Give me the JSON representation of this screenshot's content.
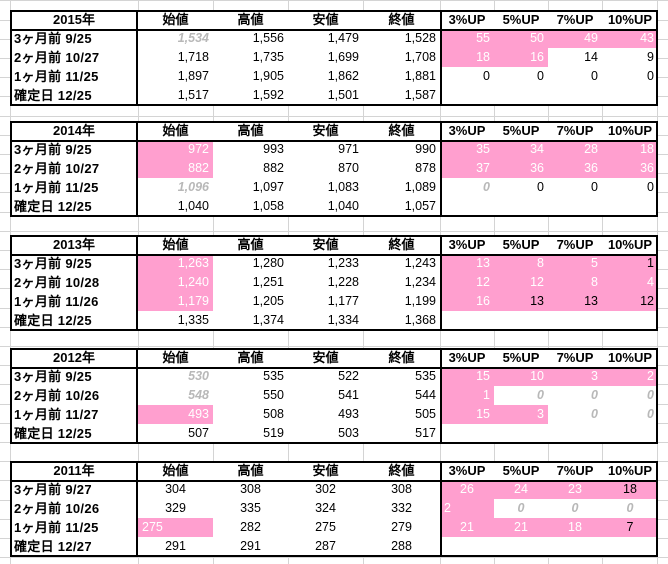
{
  "headers": {
    "open": "始値",
    "high": "高値",
    "low": "安値",
    "close": "終値",
    "up3": "3%UP",
    "up5": "5%UP",
    "up7": "7%UP",
    "up10": "10%UP"
  },
  "blocks": [
    {
      "year": "2015年",
      "rows": [
        {
          "label": "3ヶ月前  9/25",
          "open": "1,534",
          "high": "1,556",
          "low": "1,479",
          "close": "1,528",
          "up3": "55",
          "up5": "50",
          "up7": "49",
          "up10": "43"
        },
        {
          "label": "2ヶ月前  10/27",
          "open": "1,718",
          "high": "1,735",
          "low": "1,699",
          "close": "1,708",
          "up3": "18",
          "up5": "16",
          "up7": "14",
          "up10": "9"
        },
        {
          "label": "1ヶ月前  11/25",
          "open": "1,897",
          "high": "1,905",
          "low": "1,862",
          "close": "1,881",
          "up3": "0",
          "up5": "0",
          "up7": "0",
          "up10": "0"
        },
        {
          "label": "確定日  12/25",
          "open": "1,517",
          "high": "1,592",
          "low": "1,501",
          "close": "1,587",
          "up3": "",
          "up5": "",
          "up7": "",
          "up10": ""
        }
      ]
    },
    {
      "year": "2014年",
      "rows": [
        {
          "label": "3ヶ月前  9/25",
          "open": "972",
          "high": "993",
          "low": "971",
          "close": "990",
          "up3": "35",
          "up5": "34",
          "up7": "28",
          "up10": "18"
        },
        {
          "label": "2ヶ月前  10/27",
          "open": "882",
          "high": "882",
          "low": "870",
          "close": "878",
          "up3": "37",
          "up5": "36",
          "up7": "36",
          "up10": "36"
        },
        {
          "label": "1ヶ月前  11/25",
          "open": "1,096",
          "high": "1,097",
          "low": "1,083",
          "close": "1,089",
          "up3": "0",
          "up5": "0",
          "up7": "0",
          "up10": "0"
        },
        {
          "label": "確定日  12/25",
          "open": "1,040",
          "high": "1,058",
          "low": "1,040",
          "close": "1,057",
          "up3": "",
          "up5": "",
          "up7": "",
          "up10": ""
        }
      ]
    },
    {
      "year": "2013年",
      "rows": [
        {
          "label": "3ヶ月前  9/25",
          "open": "1,263",
          "high": "1,280",
          "low": "1,233",
          "close": "1,243",
          "up3": "13",
          "up5": "8",
          "up7": "5",
          "up10": "1"
        },
        {
          "label": "2ヶ月前  10/28",
          "open": "1,240",
          "high": "1,251",
          "low": "1,228",
          "close": "1,234",
          "up3": "12",
          "up5": "12",
          "up7": "8",
          "up10": "4"
        },
        {
          "label": "1ヶ月前  11/26",
          "open": "1,179",
          "high": "1,205",
          "low": "1,177",
          "close": "1,199",
          "up3": "16",
          "up5": "13",
          "up7": "13",
          "up10": "12"
        },
        {
          "label": "確定日  12/25",
          "open": "1,335",
          "high": "1,374",
          "low": "1,334",
          "close": "1,368",
          "up3": "",
          "up5": "",
          "up7": "",
          "up10": ""
        }
      ]
    },
    {
      "year": "2012年",
      "rows": [
        {
          "label": "3ヶ月前  9/25",
          "open": "530",
          "high": "535",
          "low": "522",
          "close": "535",
          "up3": "15",
          "up5": "10",
          "up7": "3",
          "up10": "2"
        },
        {
          "label": "2ヶ月前  10/26",
          "open": "548",
          "high": "550",
          "low": "541",
          "close": "544",
          "up3": "1",
          "up5": "0",
          "up7": "0",
          "up10": "0"
        },
        {
          "label": "1ヶ月前  11/27",
          "open": "493",
          "high": "508",
          "low": "493",
          "close": "505",
          "up3": "15",
          "up5": "3",
          "up7": "0",
          "up10": "0"
        },
        {
          "label": "確定日  12/25",
          "open": "507",
          "high": "519",
          "low": "503",
          "close": "517",
          "up3": "",
          "up5": "",
          "up7": "",
          "up10": ""
        }
      ]
    },
    {
      "year": "2011年",
      "rows": [
        {
          "label": "3ヶ月前  9/27",
          "open": "304",
          "high": "308",
          "low": "302",
          "close": "308",
          "up3": "26",
          "up5": "24",
          "up7": "23",
          "up10": "18"
        },
        {
          "label": "2ヶ月前  10/26",
          "open": "329",
          "high": "335",
          "low": "324",
          "close": "332",
          "up3": "2",
          "up5": "0",
          "up7": "0",
          "up10": "0"
        },
        {
          "label": "1ヶ月前  11/25",
          "open": "275",
          "high": "282",
          "low": "275",
          "close": "279",
          "up3": "21",
          "up5": "21",
          "up7": "18",
          "up10": "7"
        },
        {
          "label": "確定日  12/27",
          "open": "291",
          "high": "291",
          "low": "287",
          "close": "288",
          "up3": "",
          "up5": "",
          "up7": "",
          "up10": ""
        }
      ]
    }
  ]
}
